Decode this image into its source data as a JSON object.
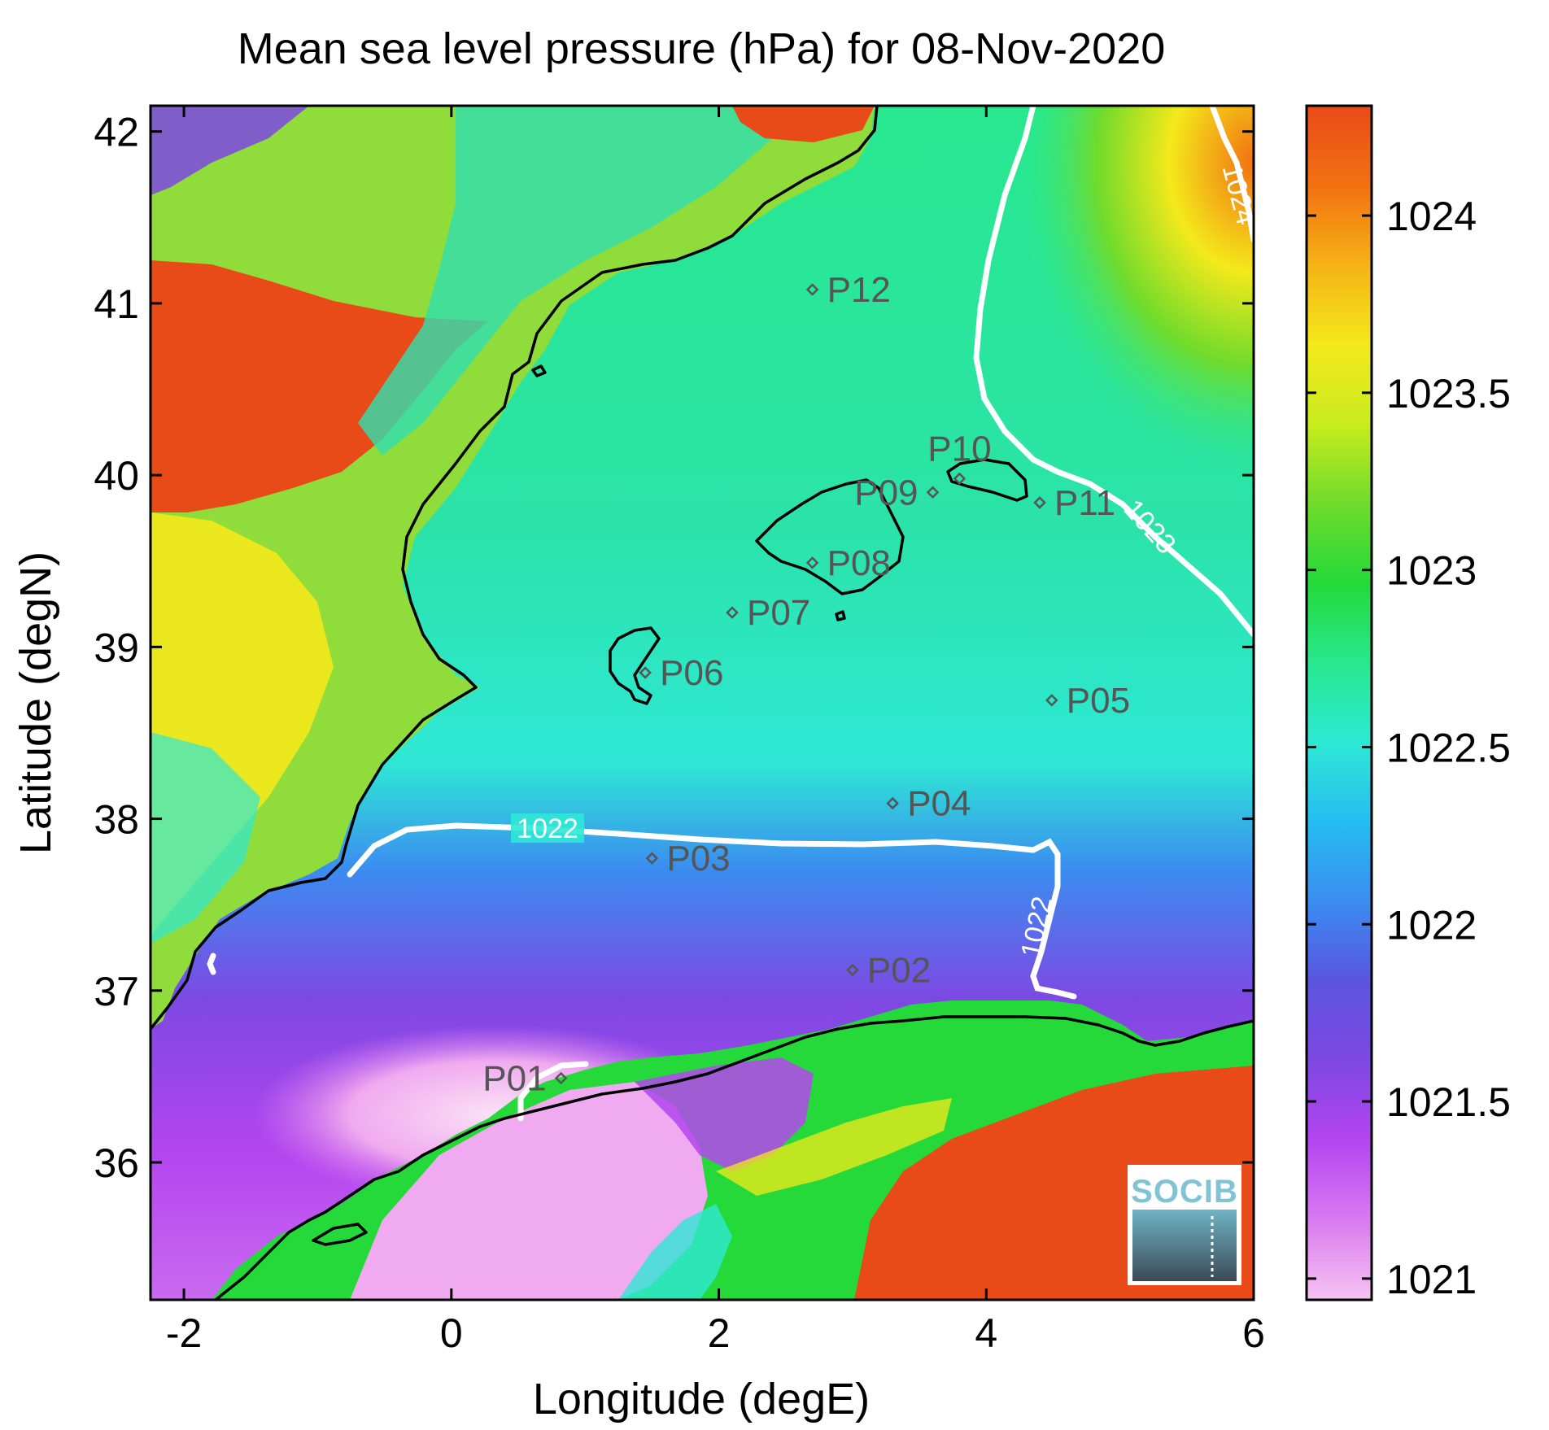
{
  "title": "Mean sea level pressure (hPa) for 08-Nov-2020",
  "xlabel": "Longitude (degE)",
  "ylabel": "Latitude (degN)",
  "x_ticks": [
    "-2",
    "0",
    "2",
    "4",
    "6"
  ],
  "y_ticks": [
    "36",
    "37",
    "38",
    "39",
    "40",
    "41",
    "42"
  ],
  "colorbar": {
    "ticks": [
      "1021",
      "1021.5",
      "1022",
      "1022.5",
      "1023",
      "1023.5",
      "1024"
    ],
    "range": [
      1020.94,
      1024.31
    ],
    "colors": [
      "#f7c3f2",
      "#d97af0",
      "#b545ef",
      "#7e48e3",
      "#5a55e0",
      "#3b8cf0",
      "#26bdf0",
      "#2ee8d5",
      "#27e88f",
      "#25d93a",
      "#6fdb2c",
      "#c8ec1e",
      "#f4e91b",
      "#f6b216",
      "#f27112",
      "#e84b18"
    ]
  },
  "contour_labels": [
    "1022",
    "1022",
    "1023",
    "1024"
  ],
  "stations": [
    {
      "name": "P01",
      "lon": 0.82,
      "lat": 36.49
    },
    {
      "name": "P02",
      "lon": 3.0,
      "lat": 37.12
    },
    {
      "name": "P03",
      "lon": 1.5,
      "lat": 37.77
    },
    {
      "name": "P04",
      "lon": 3.3,
      "lat": 38.09
    },
    {
      "name": "P05",
      "lon": 4.49,
      "lat": 38.69
    },
    {
      "name": "P06",
      "lon": 1.45,
      "lat": 38.85
    },
    {
      "name": "P07",
      "lon": 2.1,
      "lat": 39.2
    },
    {
      "name": "P08",
      "lon": 2.7,
      "lat": 39.49
    },
    {
      "name": "P09",
      "lon": 3.6,
      "lat": 39.9
    },
    {
      "name": "P10",
      "lon": 3.8,
      "lat": 39.98
    },
    {
      "name": "P11",
      "lon": 4.4,
      "lat": 39.84
    },
    {
      "name": "P12",
      "lon": 2.7,
      "lat": 41.08
    }
  ],
  "logo": {
    "text": "SOCIB"
  }
}
